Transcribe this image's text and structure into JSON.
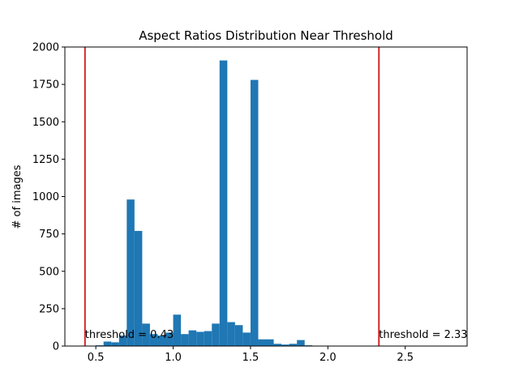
{
  "chart_data": {
    "type": "bar",
    "title": "Aspect Ratios Distribution Near Threshold",
    "xlabel": "",
    "ylabel": "# of images",
    "xlim": [
      0.3,
      2.9
    ],
    "ylim": [
      0,
      2000
    ],
    "x_ticks": [
      0.5,
      1.0,
      1.5,
      2.0,
      2.5
    ],
    "x_tick_labels": [
      "0.5",
      "1.0",
      "1.5",
      "2.0",
      "2.5"
    ],
    "y_ticks": [
      0,
      250,
      500,
      750,
      1000,
      1250,
      1500,
      1750,
      2000
    ],
    "y_tick_labels": [
      "0",
      "250",
      "500",
      "750",
      "1000",
      "1250",
      "1500",
      "1750",
      "2000"
    ],
    "grid": false,
    "bar_color": "#1f77b4",
    "threshold_color": "#d62728",
    "bin_width": 0.05,
    "bins_start": [
      0.5,
      0.55,
      0.6,
      0.65,
      0.7,
      0.75,
      0.8,
      0.85,
      0.9,
      0.95,
      1.0,
      1.05,
      1.1,
      1.15,
      1.2,
      1.25,
      1.3,
      1.35,
      1.4,
      1.45,
      1.5,
      1.55,
      1.6,
      1.65,
      1.7,
      1.75,
      1.8,
      1.85
    ],
    "values": [
      5,
      30,
      25,
      70,
      980,
      770,
      150,
      80,
      70,
      90,
      210,
      80,
      105,
      95,
      100,
      150,
      1910,
      160,
      140,
      90,
      1780,
      45,
      45,
      15,
      10,
      15,
      40,
      5
    ],
    "thresholds": [
      {
        "value": 0.43,
        "label": "threshold = 0.43"
      },
      {
        "value": 2.33,
        "label": "threshold = 2.33"
      }
    ]
  }
}
